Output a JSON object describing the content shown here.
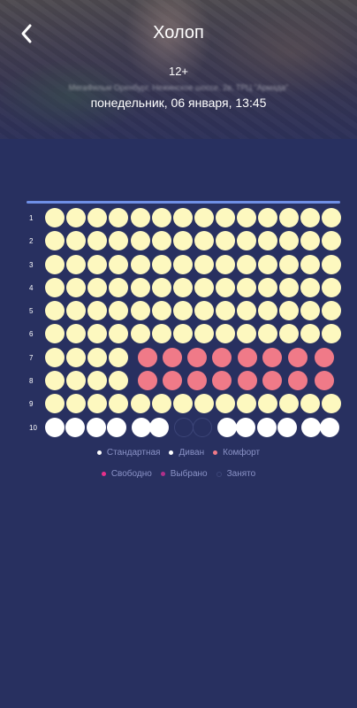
{
  "header": {
    "title": "Холоп",
    "age_rating": "12+",
    "address": "МегаФильм Оренбург, Нежинское шоссе, 2в, ТРЦ \"Армада\"",
    "datetime": "понедельник, 06 января, 13:45",
    "back_icon": "chevron-left-icon"
  },
  "hall": {
    "rows": [
      {
        "label": "1"
      },
      {
        "label": "2"
      },
      {
        "label": "3"
      },
      {
        "label": "4"
      },
      {
        "label": "5"
      },
      {
        "label": "6"
      },
      {
        "label": "7"
      },
      {
        "label": "8"
      },
      {
        "label": "9"
      },
      {
        "label": "10"
      }
    ]
  },
  "legend": {
    "types": [
      {
        "label": "Стандартная",
        "color": "#ffffff"
      },
      {
        "label": "Диван",
        "color": "#ffffff"
      },
      {
        "label": "Комфорт",
        "color": "#f07a88"
      }
    ],
    "states": [
      {
        "label": "Свободно",
        "color": "#e8308a"
      },
      {
        "label": "Выбрано",
        "color": "#b0308a"
      },
      {
        "label": "Занято",
        "color": "#3c4578"
      }
    ]
  },
  "colors": {
    "background": "#283060",
    "standard_seat": "#fdf8bf",
    "comfort_seat": "#f07a88",
    "sofa_seat": "#ffffff",
    "screen_line": "#6f8fe6"
  }
}
